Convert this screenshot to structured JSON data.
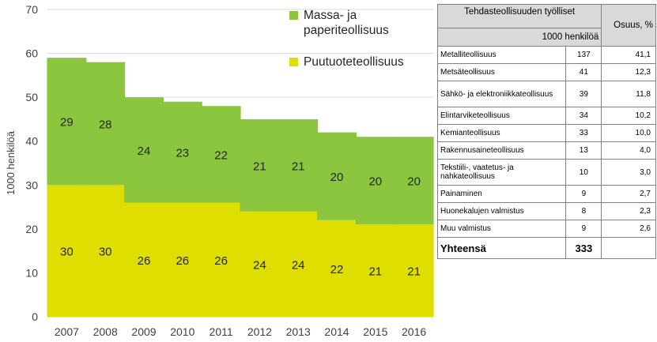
{
  "chart_data": {
    "type": "bar",
    "stacked": true,
    "categories": [
      "2007",
      "2008",
      "2009",
      "2010",
      "2011",
      "2012",
      "2013",
      "2014",
      "2015",
      "2016"
    ],
    "series": [
      {
        "name": "Puutuoteteollisuus",
        "color": "#dede00",
        "values": [
          30,
          30,
          26,
          26,
          26,
          24,
          24,
          22,
          21,
          21
        ]
      },
      {
        "name": "Massa- ja paperiteollisuus",
        "color": "#8cc63f",
        "values": [
          29,
          28,
          24,
          23,
          22,
          21,
          21,
          20,
          20,
          20
        ]
      }
    ],
    "ylabel": "1000 henkilöä",
    "ylim": [
      0,
      70
    ],
    "yticks": [
      0,
      10,
      20,
      30,
      40,
      50,
      60,
      70
    ],
    "grid": true,
    "legend_position": "top-right"
  },
  "legend": {
    "items": [
      {
        "label": "Massa- ja\npaperiteollisuus",
        "color": "#8cc63f"
      },
      {
        "label": "Puutuoteteollisuus",
        "color": "#dede00"
      }
    ]
  },
  "table": {
    "header_title": "Tehdasteollisuuden työlliset",
    "header_unit": "1000 henkilöä",
    "header_share": "Osuus, %",
    "rows": [
      {
        "name": "Metalliteollisuus",
        "value": "137",
        "share": "41,1"
      },
      {
        "name": "Metsäteollisuus",
        "value": "41",
        "share": "12,3"
      },
      {
        "name": "Sähkö- ja elektroniikkateollisuus",
        "value": "39",
        "share": "11,8"
      },
      {
        "name": "Elintarviketeollisuus",
        "value": "34",
        "share": "10,2"
      },
      {
        "name": "Kemianteollisuus",
        "value": "33",
        "share": "10,0"
      },
      {
        "name": "Rakennusaineteollisuus",
        "value": "13",
        "share": "4,0"
      },
      {
        "name": "Tekstiili-, vaatetus- ja nahkateollisuus",
        "value": "10",
        "share": "3,0"
      },
      {
        "name": "Painaminen",
        "value": "9",
        "share": "2,7"
      },
      {
        "name": "Huonekalujen valmistus",
        "value": "8",
        "share": "2,3"
      },
      {
        "name": "Muu valmistus",
        "value": "9",
        "share": "2,6"
      }
    ],
    "total": {
      "name": "Yhteensä",
      "value": "333",
      "share": ""
    }
  }
}
